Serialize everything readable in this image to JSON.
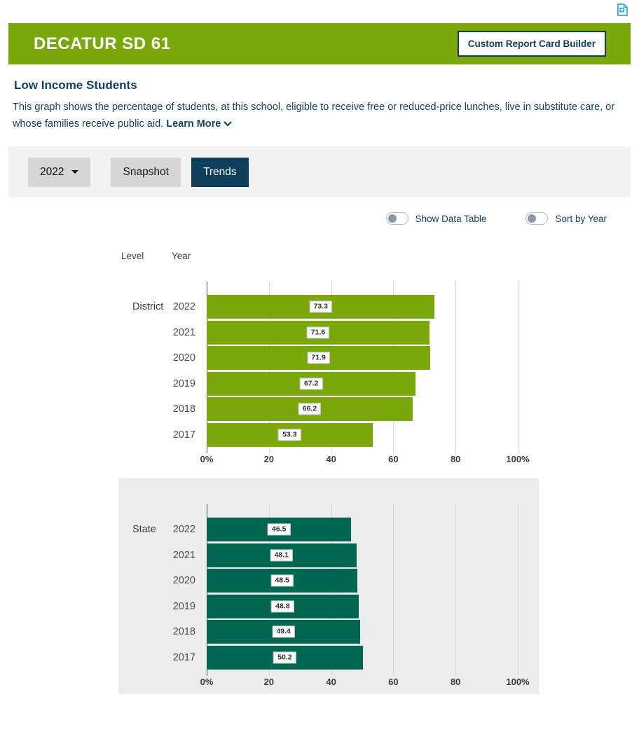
{
  "topbar": {
    "export_icon": "excel-export-icon",
    "export_color": "#29abe2"
  },
  "header": {
    "title": "DECATUR SD 61",
    "button_label": "Custom Report Card Builder",
    "bg_color": "#7aa80a",
    "accent_navy": "#0e3e5a"
  },
  "section": {
    "title": "Low Income Students",
    "description": "This graph shows the percentage of students, at this school, eligible to receive free or reduced-price lunches, live in substitute care, or whose families receive public aid.",
    "learn_more_label": "Learn More"
  },
  "controls": {
    "year_selected": "2022",
    "tabs": [
      {
        "label": "Snapshot",
        "active": false
      },
      {
        "label": "Trends",
        "active": true
      }
    ],
    "toggles": [
      {
        "label": "Show Data Table",
        "on": false
      },
      {
        "label": "Sort by Year",
        "on": false
      }
    ]
  },
  "chart_data": {
    "type": "bar",
    "orientation": "horizontal",
    "title": "Low Income Students",
    "column_headers": {
      "level": "Level",
      "year": "Year"
    },
    "x_ticks": [
      "0%",
      "20",
      "40",
      "60",
      "80",
      "100%"
    ],
    "tick_positions": [
      0,
      20,
      40,
      60,
      80,
      100
    ],
    "xlim": [
      0,
      100
    ],
    "grid": true,
    "groups": [
      {
        "level": "District",
        "bar_color": "#7aa80a",
        "panel_bg": "#ffffff",
        "categories": [
          "2022",
          "2021",
          "2020",
          "2019",
          "2018",
          "2017"
        ],
        "values": [
          73.3,
          71.6,
          71.9,
          67.2,
          66.2,
          53.3
        ]
      },
      {
        "level": "State",
        "bar_color": "#006651",
        "panel_bg": "#ececec",
        "categories": [
          "2022",
          "2021",
          "2020",
          "2019",
          "2018",
          "2017"
        ],
        "values": [
          46.5,
          48.1,
          48.5,
          48.8,
          49.4,
          50.2
        ]
      }
    ]
  }
}
